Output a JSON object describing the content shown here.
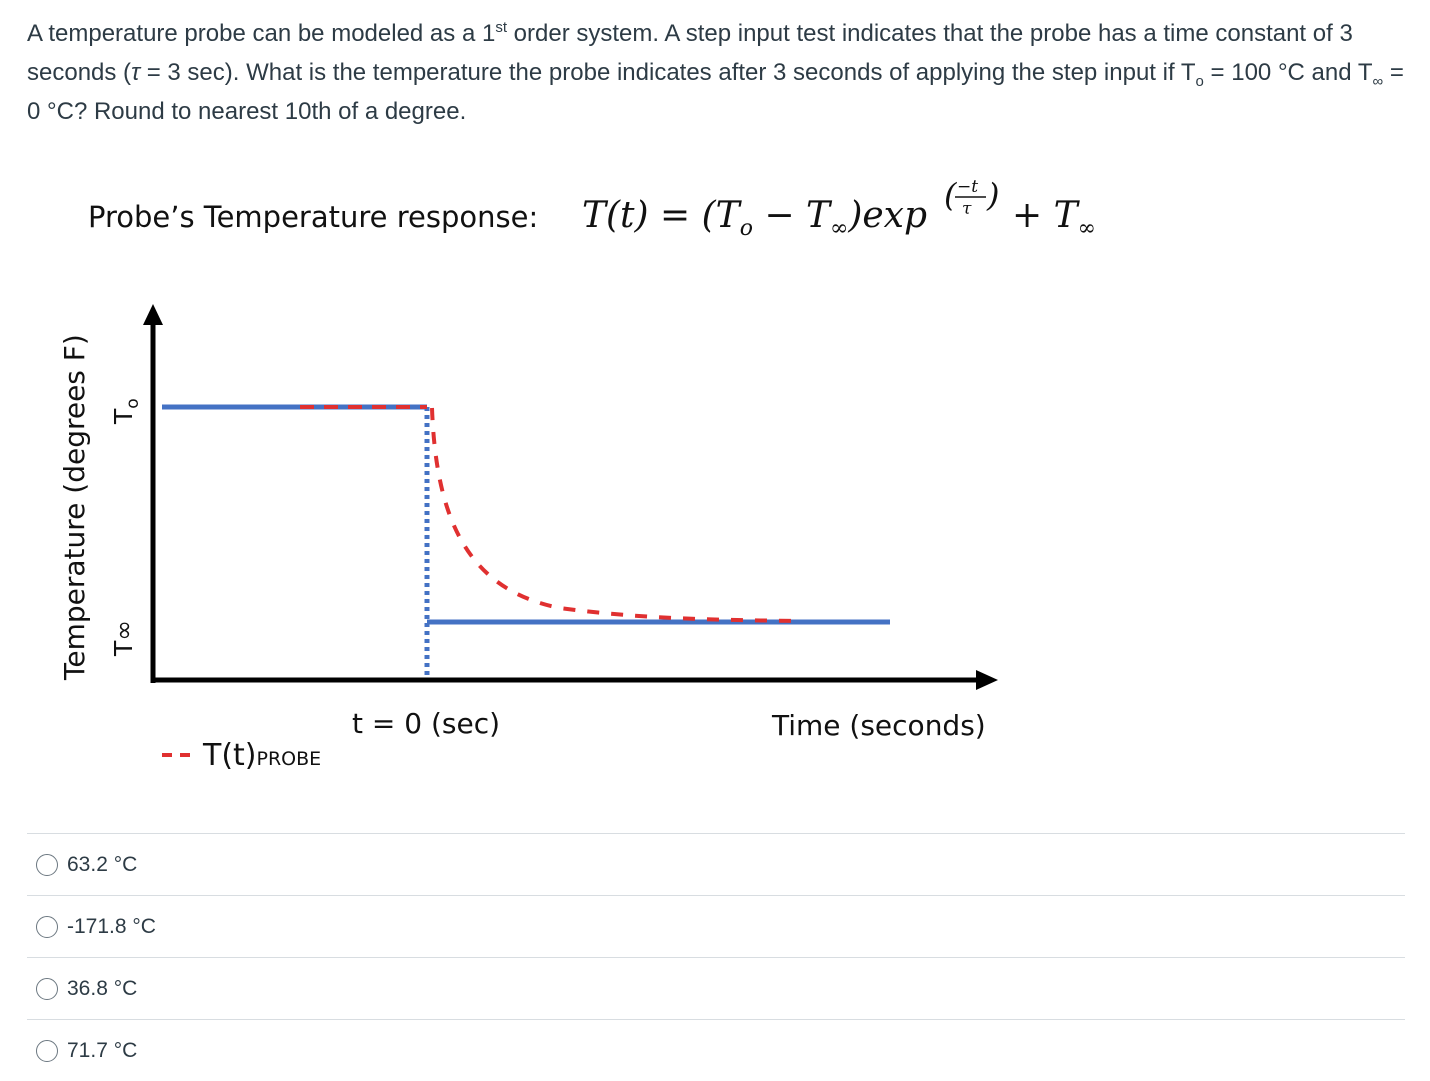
{
  "question": {
    "part1": "A temperature probe can be modeled as a 1",
    "sup": "st",
    "part2": " order system.  A step input test indicates that the probe has a time constant of 3 seconds (",
    "tau": "τ",
    "part3": " = 3 sec).  What is the temperature the probe indicates after 3 seconds of applying the step input if T",
    "sub_o": "o",
    "part4": " = 100 °C and T",
    "sub_inf": "∞",
    "part5": " = 0 °C? Round to nearest 10th of a degree."
  },
  "figure": {
    "response_label": "Probe’s Temperature response:",
    "equation": {
      "lhs": "T(t) = (T",
      "o": "o",
      "minus": " − T",
      "inf": "∞",
      "exp": ")exp",
      "exponent_num": "−t",
      "exponent_den": "τ",
      "tail": "+ T",
      "tail_inf": "∞"
    },
    "y_axis_label": "Temperature (degrees F)",
    "y_tick_top": "T",
    "y_tick_top_sub": "o",
    "y_tick_bottom": "T∞",
    "x_marker_label": "t = 0 (sec)",
    "x_axis_label": "Time (seconds)",
    "legend_main": "T(t)",
    "legend_sub": "PROBE",
    "colors": {
      "step": "#4472c4",
      "probe": "#e03030",
      "axis": "#000000"
    }
  },
  "answers": [
    {
      "label": "63.2 °C"
    },
    {
      "label": "-171.8 °C"
    },
    {
      "label": "36.8 °C"
    },
    {
      "label": "71.7 °C"
    }
  ]
}
